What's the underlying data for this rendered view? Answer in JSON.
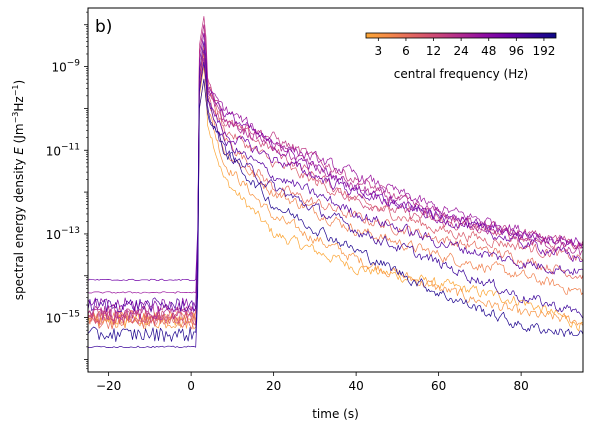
{
  "chart_data": {
    "type": "line",
    "panel_label": "b)",
    "xlabel": "time (s)",
    "ylabel_parts": [
      "spectral energy density ",
      "E",
      " (Jm",
      "−3",
      "Hz",
      "−1",
      ")"
    ],
    "xlim": [
      -25,
      95
    ],
    "ylim_log10": [
      -16.3,
      -7.6
    ],
    "y_log_scale": true,
    "x_ticks": [
      -20,
      0,
      20,
      40,
      60,
      80
    ],
    "x_tick_labels": [
      "−20",
      "0",
      "20",
      "40",
      "60",
      "80"
    ],
    "y_ticks_log10": [
      -15,
      -13,
      -11,
      -9
    ],
    "y_tick_labels": [
      {
        "base": "10",
        "exp": "−15"
      },
      {
        "base": "10",
        "exp": "−13"
      },
      {
        "base": "10",
        "exp": "−11"
      },
      {
        "base": "10",
        "exp": "−9"
      }
    ],
    "grid": false,
    "colorbar": {
      "label": "central frequency (Hz)",
      "tick_labels": [
        "3",
        "6",
        "12",
        "24",
        "48",
        "96",
        "192"
      ],
      "range_hz": [
        2.2,
        260
      ],
      "colormap": "plasma",
      "placement": "top-right",
      "colors": [
        "#fca636",
        "#f48849",
        "#e16462",
        "#cc4778",
        "#b12a90",
        "#8f0da4",
        "#6a00a8",
        "#3a049a",
        "#0d0887"
      ]
    },
    "series": [
      {
        "freq": 2.2,
        "pre": -15.05,
        "peak": -9.0,
        "knots": [
          [
            4,
            -10.3
          ],
          [
            8,
            -11.7
          ],
          [
            20,
            -13.0
          ],
          [
            40,
            -13.8
          ],
          [
            60,
            -14.2
          ],
          [
            80,
            -14.6
          ],
          [
            95,
            -15.2
          ]
        ]
      },
      {
        "freq": 3.2,
        "pre": -15.1,
        "peak": -9.3,
        "knots": [
          [
            4,
            -10.0
          ],
          [
            8,
            -11.3
          ],
          [
            20,
            -12.6
          ],
          [
            40,
            -13.6
          ],
          [
            60,
            -14.3
          ],
          [
            80,
            -14.9
          ],
          [
            95,
            -15.1
          ]
        ]
      },
      {
        "freq": 4.5,
        "pre": -15.0,
        "peak": -8.7,
        "knots": [
          [
            4,
            -9.7
          ],
          [
            8,
            -11.0
          ],
          [
            20,
            -12.0
          ],
          [
            40,
            -12.9
          ],
          [
            60,
            -13.5
          ],
          [
            80,
            -14.0
          ],
          [
            95,
            -14.4
          ]
        ]
      },
      {
        "freq": 6.4,
        "pre": -15.1,
        "peak": -8.5,
        "knots": [
          [
            4,
            -9.5
          ],
          [
            8,
            -10.7
          ],
          [
            20,
            -11.9
          ],
          [
            40,
            -12.6
          ],
          [
            60,
            -13.1
          ],
          [
            80,
            -13.6
          ],
          [
            95,
            -14.0
          ]
        ]
      },
      {
        "freq": 9,
        "pre": -15.0,
        "peak": -8.0,
        "knots": [
          [
            4,
            -9.3
          ],
          [
            8,
            -10.5
          ],
          [
            20,
            -11.3
          ],
          [
            40,
            -12.2
          ],
          [
            60,
            -12.9
          ],
          [
            80,
            -13.3
          ],
          [
            95,
            -13.6
          ]
        ]
      },
      {
        "freq": 12.7,
        "pre": -15.0,
        "peak": -8.2,
        "knots": [
          [
            4,
            -9.8
          ],
          [
            8,
            -10.3
          ],
          [
            20,
            -11.0
          ],
          [
            40,
            -12.2
          ],
          [
            60,
            -12.7
          ],
          [
            80,
            -13.1
          ],
          [
            95,
            -13.3
          ]
        ]
      },
      {
        "freq": 18,
        "pre": -14.85,
        "peak": -7.8,
        "knots": [
          [
            4,
            -9.3
          ],
          [
            8,
            -10.2
          ],
          [
            20,
            -10.7
          ],
          [
            40,
            -11.7
          ],
          [
            60,
            -12.6
          ],
          [
            80,
            -13.0
          ],
          [
            95,
            -13.2
          ]
        ]
      },
      {
        "freq": 25.4,
        "pre": -14.9,
        "peak": -8.0,
        "knots": [
          [
            4,
            -9.5
          ],
          [
            8,
            -10.3
          ],
          [
            20,
            -10.9
          ],
          [
            40,
            -11.9
          ],
          [
            60,
            -12.5
          ],
          [
            80,
            -13.1
          ],
          [
            95,
            -13.5
          ]
        ]
      },
      {
        "freq": 36,
        "pre": -14.4,
        "peak": -8.8,
        "knots": [
          [
            4,
            -9.6
          ],
          [
            8,
            -10.0
          ],
          [
            20,
            -10.8
          ],
          [
            40,
            -11.6
          ],
          [
            60,
            -12.4
          ],
          [
            80,
            -12.9
          ],
          [
            95,
            -13.3
          ]
        ]
      },
      {
        "freq": 51,
        "pre": -14.7,
        "peak": -8.2,
        "knots": [
          [
            4,
            -9.5
          ],
          [
            8,
            -10.1
          ],
          [
            20,
            -10.9
          ],
          [
            40,
            -11.9
          ],
          [
            60,
            -12.6
          ],
          [
            80,
            -13.0
          ],
          [
            95,
            -13.2
          ]
        ]
      },
      {
        "freq": 72,
        "pre": -14.1,
        "peak": -8.6,
        "knots": [
          [
            4,
            -9.8
          ],
          [
            8,
            -10.6
          ],
          [
            20,
            -11.2
          ],
          [
            40,
            -12.0
          ],
          [
            60,
            -12.6
          ],
          [
            80,
            -13.2
          ],
          [
            95,
            -13.6
          ]
        ]
      },
      {
        "freq": 102,
        "pre": -14.7,
        "peak": -8.4,
        "knots": [
          [
            4,
            -9.9
          ],
          [
            8,
            -10.8
          ],
          [
            20,
            -11.6
          ],
          [
            40,
            -12.5
          ],
          [
            60,
            -13.2
          ],
          [
            80,
            -13.7
          ],
          [
            95,
            -13.9
          ]
        ]
      },
      {
        "freq": 144,
        "pre": -15.7,
        "peak": -8.9,
        "knots": [
          [
            4,
            -10.0
          ],
          [
            8,
            -11.0
          ],
          [
            20,
            -11.9
          ],
          [
            40,
            -12.9
          ],
          [
            60,
            -13.7
          ],
          [
            80,
            -14.5
          ],
          [
            95,
            -14.9
          ]
        ]
      },
      {
        "freq": 204,
        "pre": -15.4,
        "peak": -9.3,
        "knots": [
          [
            4,
            -10.1
          ],
          [
            8,
            -11.0
          ],
          [
            20,
            -12.3
          ],
          [
            40,
            -13.4
          ],
          [
            60,
            -14.4
          ],
          [
            80,
            -15.2
          ],
          [
            95,
            -15.4
          ]
        ]
      }
    ]
  }
}
